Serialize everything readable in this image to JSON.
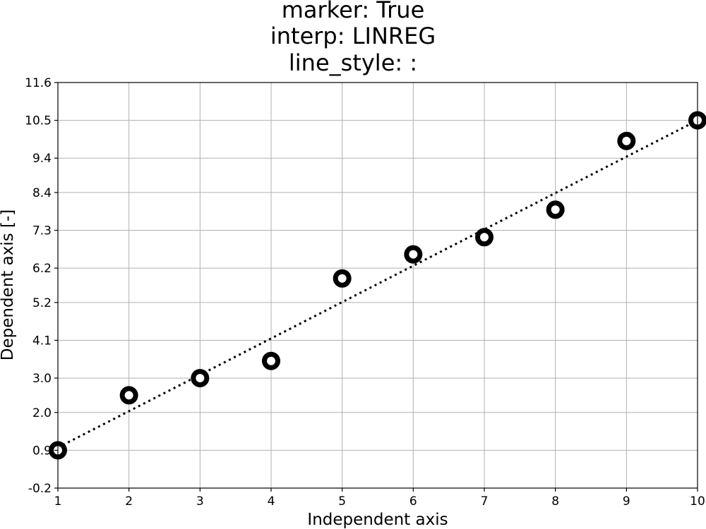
{
  "chart_data": {
    "type": "scatter",
    "title_lines": [
      "marker: True",
      "interp: LINREG",
      "line_style: :"
    ],
    "xlabel": "Independent axis",
    "ylabel": "Dependent axis [-]",
    "xlim": [
      1,
      10
    ],
    "ylim": [
      -0.2,
      11.6
    ],
    "x_ticks": [
      "1",
      "2",
      "3",
      "4",
      "5",
      "6",
      "7",
      "8",
      "9",
      "10"
    ],
    "y_ticks": [
      "-0.2",
      "0.9",
      "2.0",
      "3.0",
      "4.1",
      "5.2",
      "6.2",
      "7.3",
      "8.4",
      "9.4",
      "10.5",
      "11.6"
    ],
    "grid": true,
    "series": [
      {
        "x": [
          1,
          2,
          3,
          4,
          5,
          6,
          7,
          8,
          9,
          10
        ],
        "y": [
          0.9,
          2.5,
          3.0,
          3.5,
          5.9,
          6.6,
          7.1,
          7.9,
          9.9,
          10.5
        ],
        "marker": "o",
        "color": "#000000"
      }
    ],
    "fit": {
      "type": "linreg",
      "x": [
        1,
        10
      ],
      "y": [
        0.98,
        10.5
      ],
      "line_style": ":",
      "color": "#000000"
    }
  }
}
